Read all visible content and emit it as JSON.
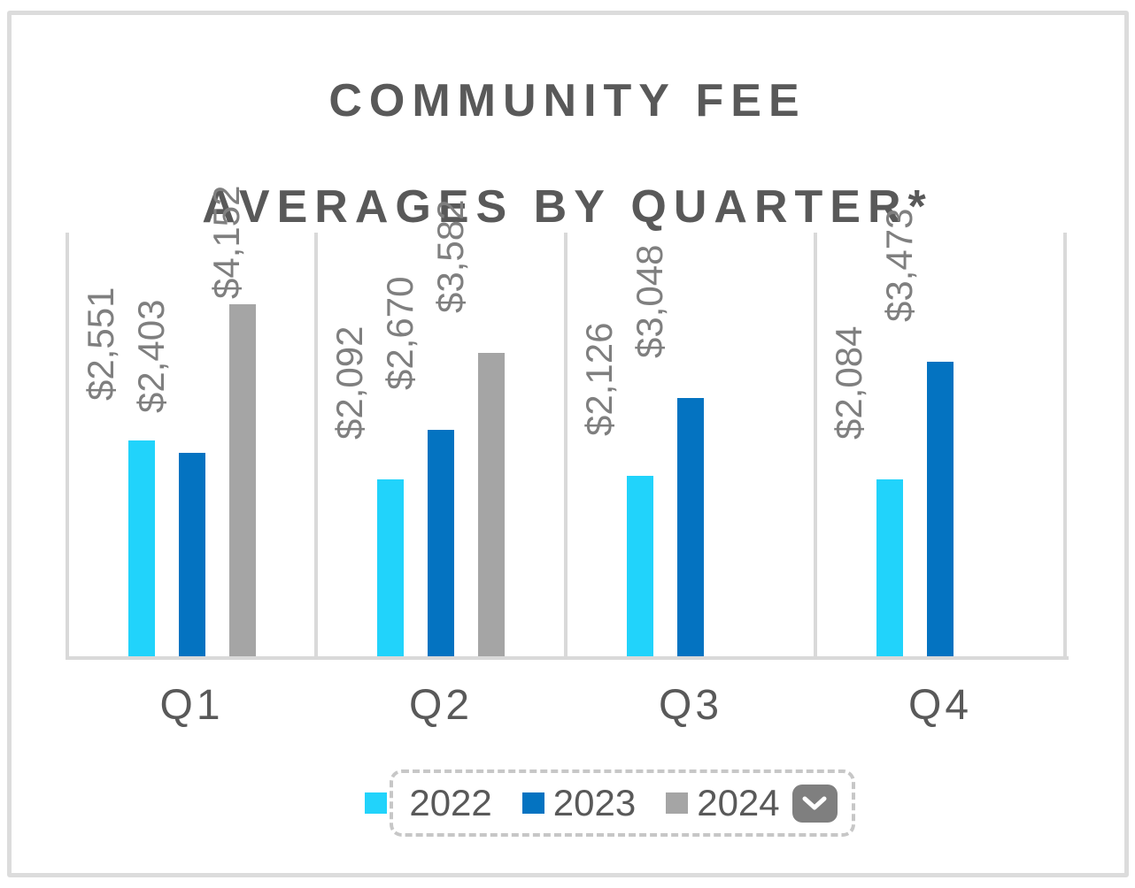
{
  "title": {
    "line1": "COMMUNITY FEE",
    "line2": "AVERAGES BY QUARTER*"
  },
  "chart_data": {
    "type": "bar",
    "title": "COMMUNITY FEE AVERAGES BY QUARTER*",
    "categories": [
      "Q1",
      "Q2",
      "Q3",
      "Q4"
    ],
    "series": [
      {
        "name": "2022",
        "color": "#21D3FB",
        "values": [
          2551,
          2092,
          2126,
          2084
        ],
        "labels": [
          "$2,551",
          "$2,092",
          "$2,126",
          "$2,084"
        ]
      },
      {
        "name": "2023",
        "color": "#0473C1",
        "values": [
          2403,
          2670,
          3048,
          3473
        ],
        "labels": [
          "$2,403",
          "$2,670",
          "$3,048",
          "$3,473"
        ]
      },
      {
        "name": "2024",
        "color": "#A5A5A5",
        "values": [
          4152,
          3582,
          null,
          null
        ],
        "labels": [
          "$4,152",
          "$3,582",
          null,
          null
        ]
      }
    ],
    "ylim": [
      0,
      5000
    ],
    "xlabel": "",
    "ylabel": "",
    "grid": "vertical-category-separators",
    "value_axis_visible": false,
    "data_label_color": "#7F7F7F",
    "legend_position": "bottom"
  },
  "legend": {
    "items": [
      {
        "label": "2022",
        "color": "#21D3FB"
      },
      {
        "label": "2023",
        "color": "#0473C1"
      },
      {
        "label": "2024",
        "color": "#A5A5A5"
      }
    ],
    "dropdown_icon": "chevron-down",
    "selected": true
  },
  "colors": {
    "title_text": "#595959",
    "axis_line": "#D9D9D9",
    "tick_text": "#595959",
    "frame_border": "#DCDCDC"
  }
}
